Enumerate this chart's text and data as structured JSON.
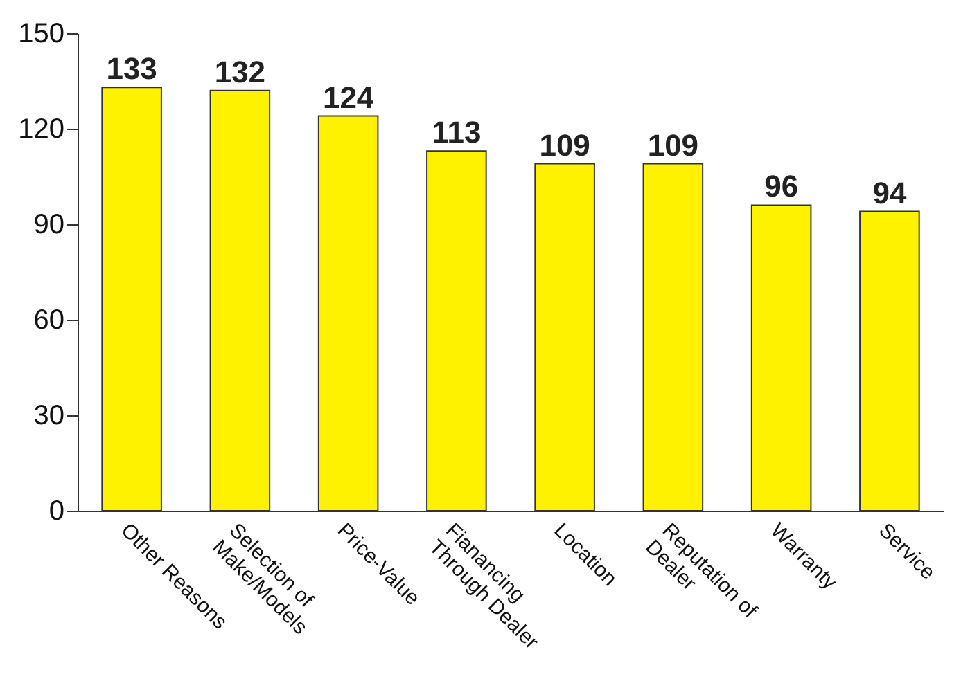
{
  "chart_data": {
    "type": "bar",
    "categories": [
      "Other Reasons",
      "Selection of\nMake/Models",
      "Price-Value",
      "Fianancing\nThrough Dealer",
      "Location",
      "Reputation of\nDealer",
      "Warranty",
      "Service"
    ],
    "values": [
      133,
      132,
      124,
      113,
      109,
      109,
      96,
      94
    ],
    "color": "#fff200",
    "ylim": [
      0,
      150
    ],
    "yticks": [
      0,
      30,
      60,
      90,
      120,
      150
    ],
    "grid": false,
    "data_labels": true
  }
}
